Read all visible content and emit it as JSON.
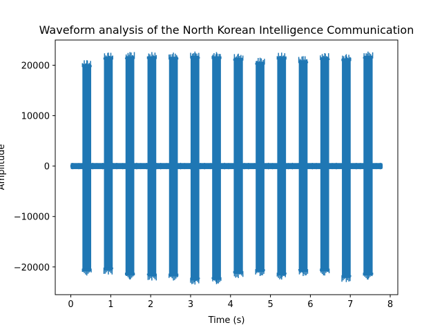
{
  "chart_data": {
    "type": "area",
    "title": "Waveform analysis of the North Korean Intelligence Communication",
    "xlabel": "Time (s)",
    "ylabel": "Amplitude",
    "xlim": [
      -0.39,
      8.19
    ],
    "ylim": [
      -25500,
      25000
    ],
    "xticks": [
      0,
      1,
      2,
      3,
      4,
      5,
      6,
      7,
      8
    ],
    "xtick_labels": [
      "0",
      "1",
      "2",
      "3",
      "4",
      "5",
      "6",
      "7",
      "8"
    ],
    "yticks": [
      -20000,
      -10000,
      0,
      10000,
      20000
    ],
    "ytick_labels": [
      "−20000",
      "−10000",
      "0",
      "10000",
      "20000"
    ],
    "grid": false,
    "series": [
      {
        "color": "#1f77b4",
        "x_range": [
          0,
          7.8
        ],
        "baseline_noise": [
          -600,
          600
        ],
        "bursts": [
          {
            "start": 0.29,
            "end": 0.51,
            "max": 21000,
            "min": -21700
          },
          {
            "start": 0.83,
            "end": 1.05,
            "max": 22500,
            "min": -21500
          },
          {
            "start": 1.37,
            "end": 1.59,
            "max": 22600,
            "min": -22500
          },
          {
            "start": 1.92,
            "end": 2.14,
            "max": 22600,
            "min": -22700
          },
          {
            "start": 2.46,
            "end": 2.68,
            "max": 22500,
            "min": -22700
          },
          {
            "start": 3.0,
            "end": 3.22,
            "max": 22700,
            "min": -23500
          },
          {
            "start": 3.54,
            "end": 3.76,
            "max": 22600,
            "min": -23400
          },
          {
            "start": 4.08,
            "end": 4.31,
            "max": 22300,
            "min": -22200
          },
          {
            "start": 4.63,
            "end": 4.85,
            "max": 21500,
            "min": -21800
          },
          {
            "start": 5.17,
            "end": 5.39,
            "max": 22500,
            "min": -22500
          },
          {
            "start": 5.71,
            "end": 5.93,
            "max": 21800,
            "min": -21800
          },
          {
            "start": 6.25,
            "end": 6.47,
            "max": 22400,
            "min": -21700
          },
          {
            "start": 6.79,
            "end": 7.01,
            "max": 22200,
            "min": -23000
          },
          {
            "start": 7.33,
            "end": 7.56,
            "max": 22700,
            "min": -22500
          }
        ]
      }
    ]
  }
}
